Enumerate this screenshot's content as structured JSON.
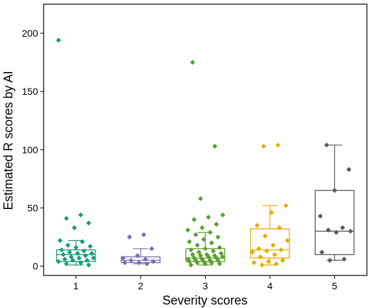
{
  "chart_data": {
    "type": "box",
    "xlabel": "Severity scores",
    "ylabel": "Estimated R scores by AI",
    "categories": [
      "1",
      "2",
      "3",
      "4",
      "5"
    ],
    "ylim": [
      -8,
      225
    ],
    "yticks": [
      0,
      50,
      100,
      150,
      200
    ],
    "grid": false,
    "series": [
      {
        "category": "1",
        "color": "#1a9a78",
        "box": {
          "min": 1,
          "q1": 4,
          "median": 10,
          "q3": 14,
          "max": 22
        },
        "points": [
          194,
          44,
          41,
          37,
          33,
          22,
          21,
          18,
          17,
          16,
          14,
          13,
          12,
          11,
          11,
          10,
          9,
          8,
          7,
          7,
          6,
          5,
          5,
          4,
          3,
          2,
          1
        ]
      },
      {
        "category": "2",
        "color": "#7570b3",
        "box": {
          "min": 2,
          "q1": 3,
          "median": 5,
          "q3": 8,
          "max": 15
        },
        "points": [
          27,
          25,
          15,
          9,
          7,
          6,
          5,
          4,
          3,
          3,
          2
        ]
      },
      {
        "category": "3",
        "color": "#5aa02c",
        "box": {
          "min": 1,
          "q1": 4,
          "median": 7,
          "q3": 15,
          "max": 29
        },
        "points": [
          175,
          103,
          58,
          44,
          42,
          40,
          36,
          33,
          31,
          29,
          27,
          25,
          23,
          21,
          20,
          18,
          16,
          15,
          14,
          13,
          12,
          11,
          10,
          10,
          9,
          9,
          8,
          8,
          7,
          7,
          6,
          6,
          5,
          5,
          5,
          4,
          4,
          3,
          3,
          2,
          2,
          1
        ]
      },
      {
        "category": "4",
        "color": "#e6ab02",
        "box": {
          "min": 1,
          "q1": 7,
          "median": 14,
          "q3": 32,
          "max": 52
        },
        "points": [
          104,
          103,
          52,
          46,
          35,
          33,
          26,
          22,
          18,
          15,
          14,
          13,
          12,
          10,
          8,
          5,
          4,
          3,
          2,
          1
        ]
      },
      {
        "category": "5",
        "color": "#595959",
        "box": {
          "min": 5,
          "q1": 10,
          "median": 30,
          "q3": 65,
          "max": 104
        },
        "points": [
          104,
          83,
          65,
          43,
          33,
          31,
          30,
          29,
          12,
          6,
          5
        ]
      }
    ]
  }
}
